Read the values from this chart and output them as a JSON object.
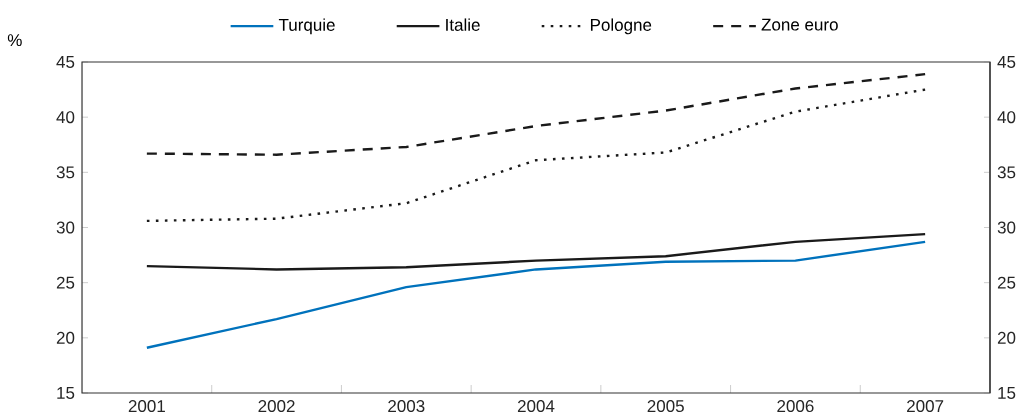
{
  "chart_data": {
    "type": "line",
    "ylabel": "%",
    "categories": [
      "2001",
      "2002",
      "2003",
      "2004",
      "2005",
      "2006",
      "2007"
    ],
    "ylim": [
      15,
      45
    ],
    "yticks": [
      15,
      20,
      25,
      30,
      35,
      40,
      45
    ],
    "y2lim": [
      15,
      45
    ],
    "y2ticks": [
      15,
      20,
      25,
      30,
      35,
      40,
      45
    ],
    "legend": "top",
    "series": [
      {
        "name": "Turquie",
        "color": "#0072bc",
        "line_style": "solid",
        "values": [
          19.1,
          21.7,
          24.6,
          26.2,
          26.9,
          27.0,
          28.7
        ]
      },
      {
        "name": "Italie",
        "color": "#1a1a1a",
        "line_style": "solid",
        "values": [
          26.5,
          26.2,
          26.4,
          27.0,
          27.4,
          28.7,
          29.4
        ]
      },
      {
        "name": "Pologne",
        "color": "#1a1a1a",
        "line_style": "dotted",
        "values": [
          30.6,
          30.8,
          32.2,
          36.1,
          36.8,
          40.5,
          42.5
        ]
      },
      {
        "name": "Zone euro",
        "color": "#1a1a1a",
        "line_style": "dashed",
        "values": [
          36.7,
          36.6,
          37.3,
          39.2,
          40.6,
          42.6,
          43.9
        ]
      }
    ]
  }
}
